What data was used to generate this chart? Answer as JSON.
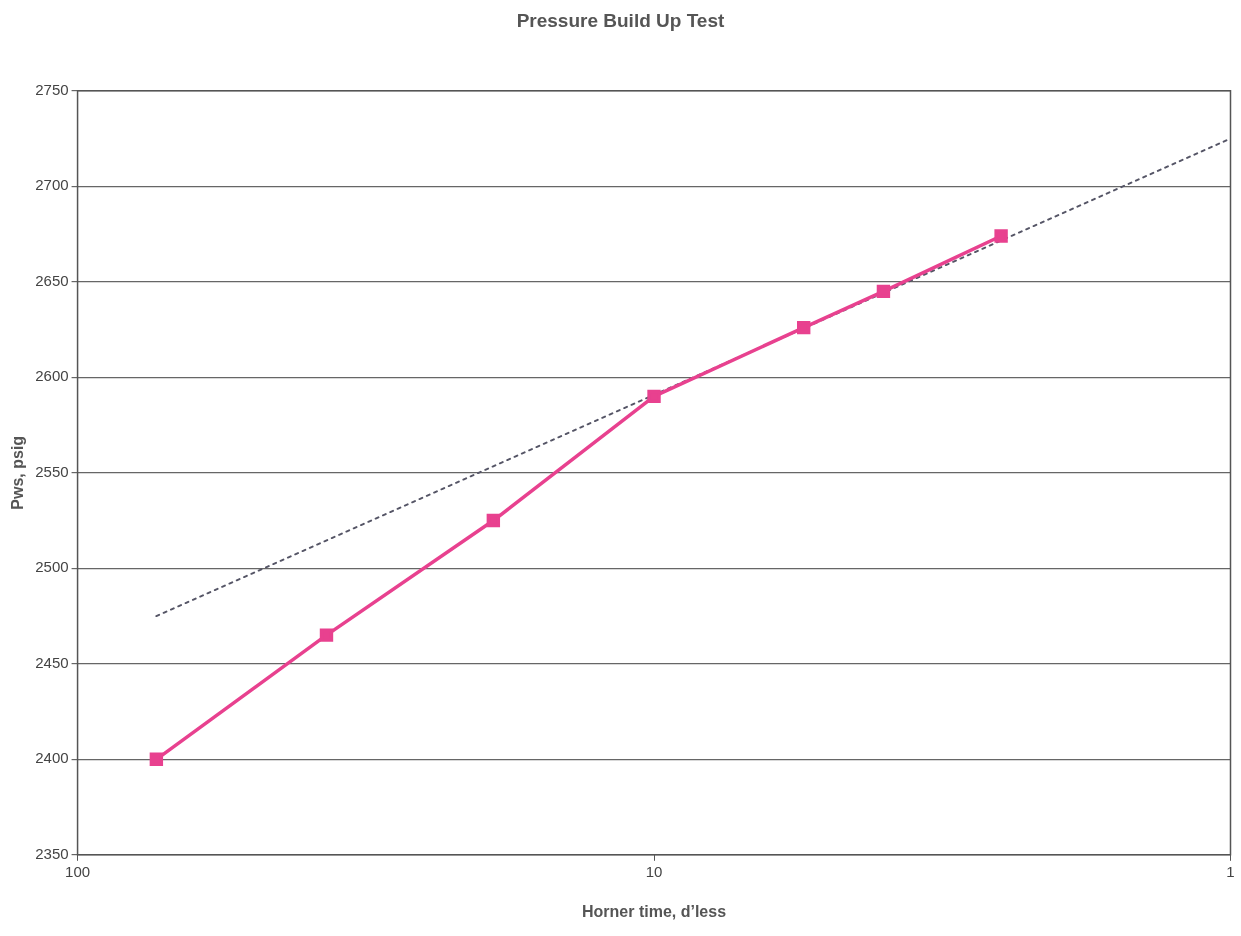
{
  "chart_data": {
    "type": "line",
    "title": "Pressure Build Up Test",
    "xlabel": "Horner time, d’less",
    "ylabel": "Pws, psig",
    "log": "x",
    "xlim": [
      100,
      1
    ],
    "xticks": [
      100,
      10,
      1
    ],
    "ylim": [
      2350,
      2750
    ],
    "yticks": [
      2350,
      2400,
      2450,
      2500,
      2550,
      2600,
      2650,
      2700,
      2750
    ],
    "grid": "y",
    "legend": false,
    "series": [
      {
        "type": "line",
        "color": "#e8418f",
        "marker": "square",
        "line_style": "solid",
        "x": [
          73,
          37,
          19,
          10,
          5.5,
          4,
          2.5
        ],
        "values": [
          2400,
          2465,
          2525,
          2590,
          2626,
          2645,
          2674
        ]
      },
      {
        "type": "line",
        "color": "#555566",
        "marker": "none",
        "line_style": "dotted",
        "x": [
          73,
          1
        ],
        "values": [
          2475,
          2725
        ]
      }
    ]
  }
}
